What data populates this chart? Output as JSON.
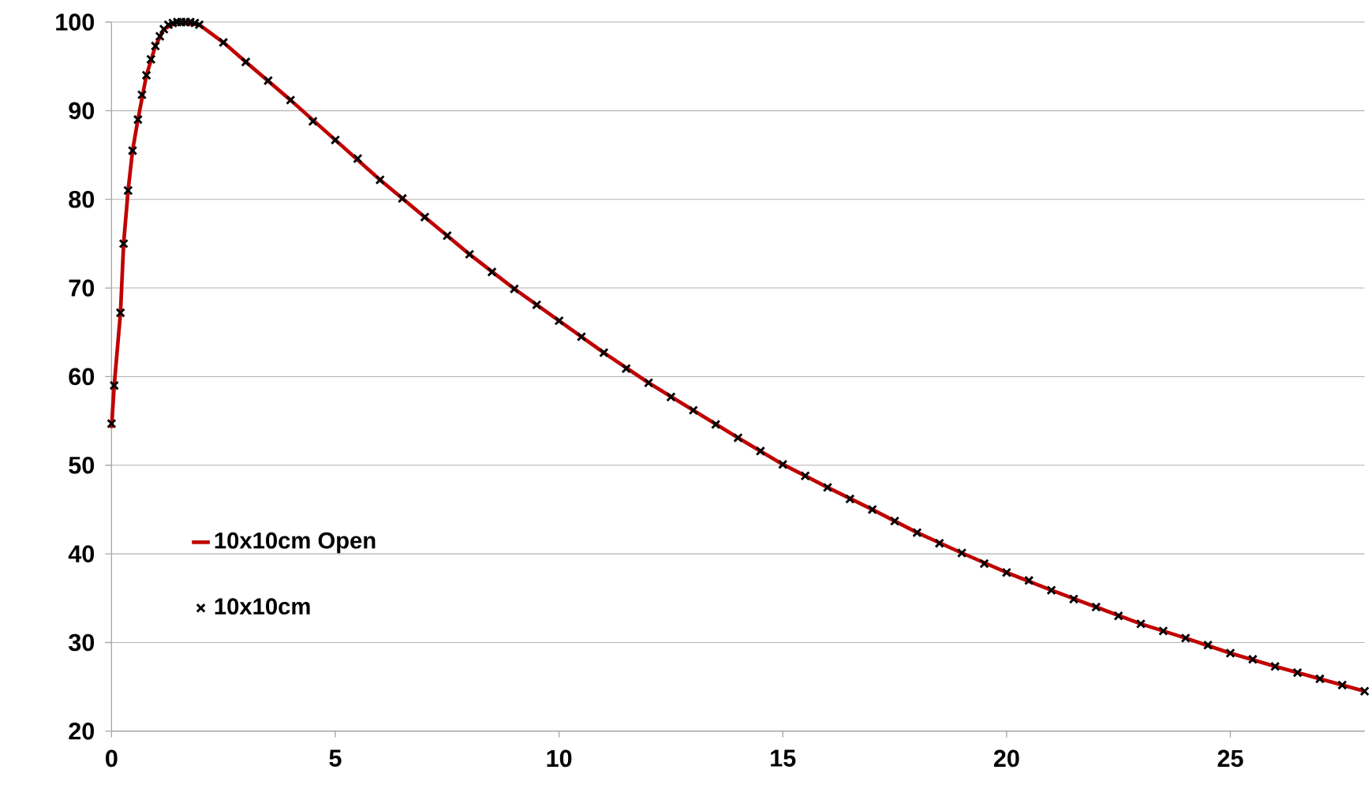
{
  "chart_data": {
    "type": "line",
    "xlim": [
      0,
      28
    ],
    "ylim": [
      20,
      100
    ],
    "xticks": [
      0,
      5,
      10,
      15,
      20,
      25
    ],
    "yticks": [
      20,
      30,
      40,
      50,
      60,
      70,
      80,
      90,
      100
    ],
    "grid": "y",
    "legend": "left",
    "series": [
      {
        "name": "10x10cm Open",
        "color": "#c00000",
        "marker": "none",
        "line_style": "solid",
        "x": [
          0,
          0.06,
          0.2,
          0.27,
          0.37,
          0.47,
          0.59,
          0.78,
          0.98,
          1.17,
          1.47,
          1.96,
          2.5,
          3,
          4,
          5,
          6,
          7,
          8,
          9,
          10,
          11,
          12,
          13,
          14,
          15,
          16,
          17,
          18,
          19,
          20,
          21,
          22,
          23,
          24,
          25,
          26,
          27,
          28
        ],
        "values": [
          54.2,
          59.0,
          67.2,
          75.0,
          81.0,
          85.5,
          89.0,
          94.0,
          97.3,
          99.2,
          100,
          99.7,
          97.7,
          95.5,
          91.2,
          86.7,
          82.2,
          78.0,
          73.8,
          69.9,
          66.3,
          62.7,
          59.3,
          56.2,
          53.1,
          50.1,
          47.5,
          45.0,
          42.4,
          40.1,
          37.9,
          35.9,
          34.0,
          32.1,
          30.5,
          28.8,
          27.3,
          25.9,
          24.5
        ]
      },
      {
        "name": "10x10cm",
        "type": "scatter",
        "color": "#000000",
        "marker": "cross",
        "x": [
          0,
          0.06,
          0.2,
          0.27,
          0.37,
          0.47,
          0.59,
          0.68,
          0.78,
          0.88,
          0.98,
          1.08,
          1.17,
          1.27,
          1.37,
          1.47,
          1.56,
          1.66,
          1.76,
          1.86,
          1.96,
          2.5,
          3,
          3.5,
          4,
          4.5,
          5,
          5.5,
          6,
          6.5,
          7,
          7.5,
          8,
          8.5,
          9,
          9.5,
          10,
          10.5,
          11,
          11.5,
          12,
          12.5,
          13,
          13.5,
          14,
          14.5,
          15,
          15.5,
          16,
          16.5,
          17,
          17.5,
          18,
          18.5,
          19,
          19.5,
          20,
          20.5,
          21,
          21.5,
          22,
          22.5,
          23,
          23.5,
          24,
          24.5,
          25,
          25.5,
          26,
          26.5,
          27,
          27.5,
          28
        ],
        "values": [
          54.7,
          59.0,
          67.2,
          75.0,
          81.0,
          85.5,
          89.0,
          91.8,
          94.0,
          95.8,
          97.3,
          98.4,
          99.2,
          99.7,
          99.9,
          100,
          100,
          100,
          100,
          99.9,
          99.7,
          97.7,
          95.5,
          93.4,
          91.2,
          88.8,
          86.7,
          84.6,
          82.2,
          80.1,
          78.0,
          75.9,
          73.8,
          71.8,
          69.9,
          68.1,
          66.3,
          64.5,
          62.7,
          60.9,
          59.3,
          57.7,
          56.2,
          54.6,
          53.1,
          51.6,
          50.1,
          48.8,
          47.5,
          46.2,
          45.0,
          43.7,
          42.4,
          41.2,
          40.1,
          38.9,
          37.9,
          37.0,
          35.9,
          34.9,
          34.0,
          33.0,
          32.1,
          31.3,
          30.5,
          29.7,
          28.8,
          28.1,
          27.3,
          26.6,
          25.9,
          25.2,
          24.5
        ]
      }
    ]
  }
}
